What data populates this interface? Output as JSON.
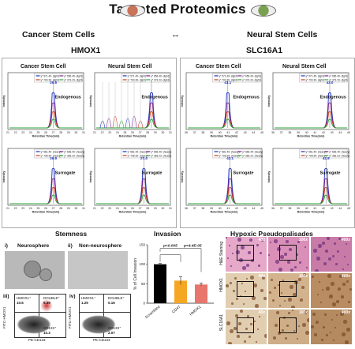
{
  "title": "Targeted Proteomics",
  "headers": {
    "left": "Cancer Stem Cells",
    "right": "Neural Stem Cells",
    "connector": "↔"
  },
  "genes": {
    "left": "HMOX1",
    "right": "SLC16A1"
  },
  "panels": {
    "cancer": "Cancer Stem Cell",
    "neural": "Neural Stem Cell"
  },
  "charts": {
    "xlabel": "Retention Time(min)",
    "ylabel": "Intensity",
    "endogenous": "Endogenous",
    "surrogate": "Surrogate",
    "peak_hmox_endo": "26.8",
    "peak_hmox_sur": "26.8",
    "peak_hmox_sur_n": "27.4",
    "peak_slc_endo": "41.1",
    "peak_slc_endo_n": "43.0",
    "peak_slc_sur": "43.1",
    "peak_slc_sur_n": "42.8",
    "legend_light": [
      "y* 571.49- (light)",
      "y* 656.49- (light)",
      "y* 700.39- (light)",
      "y* 373.23- (light)"
    ],
    "legend_heavy": [
      "y* 581.49- (heavy)",
      "y* 666.49- (heavy)",
      "y* 708.39- (heavy)",
      "y* 383.23- (heavy)"
    ],
    "ticks_hmox": [
      "21",
      "22",
      "23",
      "24",
      "25",
      "26",
      "27",
      "28",
      "29",
      "30",
      "31"
    ],
    "ticks_slc": [
      "36",
      "37",
      "38",
      "39",
      "40",
      "41",
      "42",
      "43",
      "44",
      "45"
    ]
  },
  "bottom": {
    "stemness": "Stemness",
    "invasion": "Invasion",
    "hypoxic": "Hypoxic Pseudopalisades",
    "neuro_i": "i)",
    "neuro_label": "Neurosphere",
    "non_ii": "ii)",
    "non_label": "Non-neurosphere",
    "flow_iii": "iii)",
    "flow_iv": "iv)",
    "hmox_plus": "HMOX1⁺",
    "double_plus": "DOUBLE⁺",
    "cd133_plus": "CD133⁺",
    "x_axis": "PE-CD133",
    "y_axis": "FITC-HMOX1",
    "flow3": {
      "hmox": "10.6",
      "double": "9.39",
      "cd133": "10.3"
    },
    "flow4": {
      "hmox": "1.29",
      "double": "0.16",
      "cd133": "2.07"
    },
    "invasion_ylabel": "% of Cell Invasion",
    "p1": "p<0.005",
    "p2": "p<4.4E-05",
    "stains": [
      "H&E Staining",
      "HMOX1",
      "SLC16A1"
    ],
    "mags": [
      "40x",
      "100x",
      "400x"
    ]
  },
  "chart_data": {
    "type": "bar",
    "categories": [
      "Scrambled",
      "CD47",
      "HMOX1"
    ],
    "values": [
      100,
      58,
      48
    ],
    "errors": [
      2,
      10,
      4
    ],
    "colors": [
      "#000000",
      "#f5a623",
      "#e8766c"
    ],
    "ylabel": "% of Cell Invasion",
    "ylim": [
      0,
      150
    ],
    "yticks": [
      0,
      50,
      100,
      150
    ]
  }
}
